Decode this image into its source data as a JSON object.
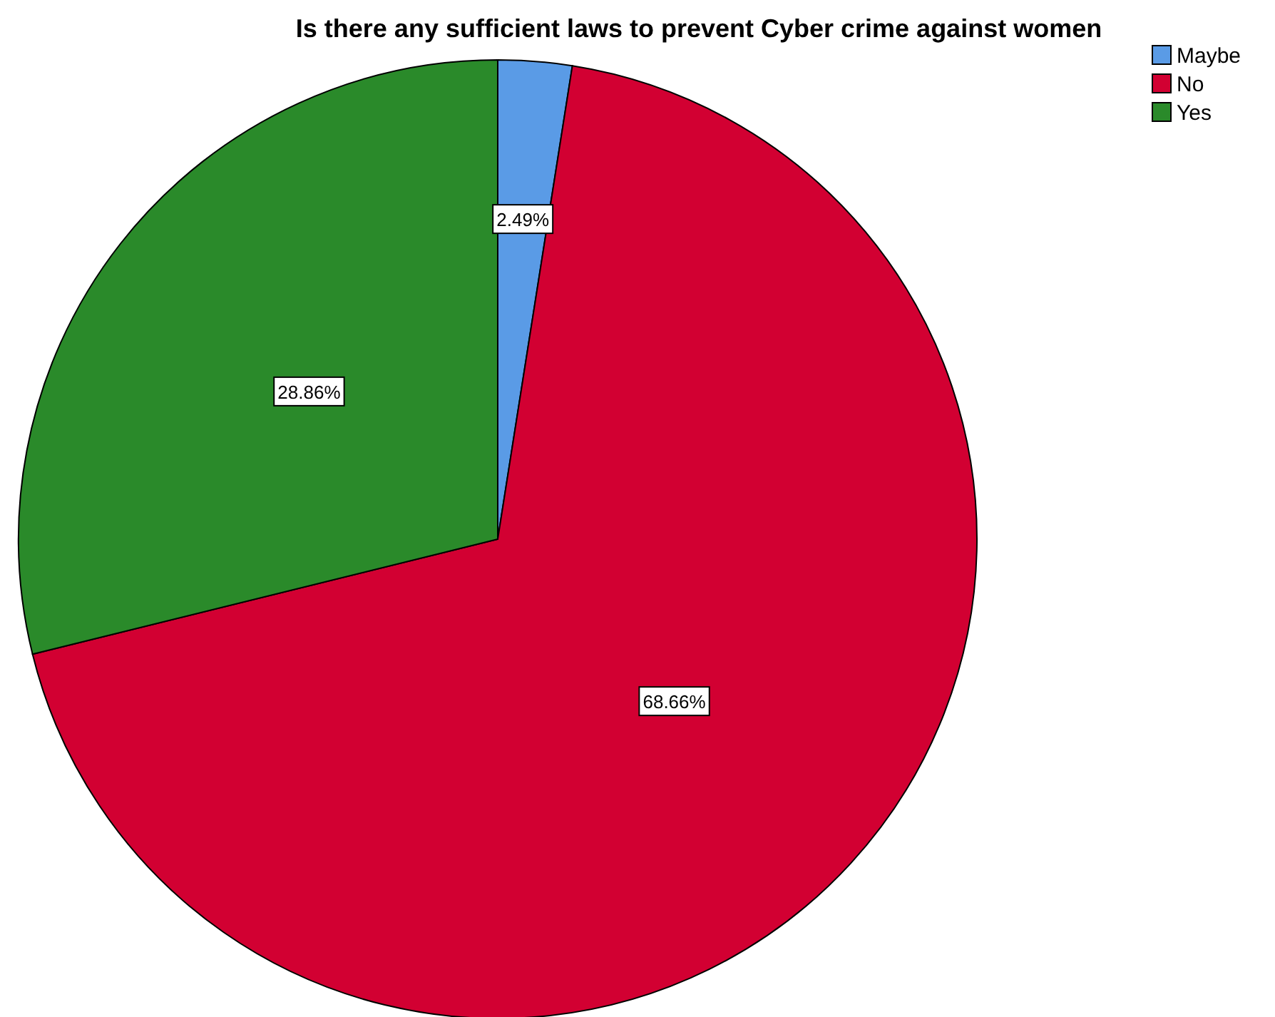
{
  "chart_data": {
    "type": "pie",
    "title": "Is there any sufficient laws to prevent Cyber crime against women",
    "categories": [
      "Maybe",
      "No",
      "Yes"
    ],
    "values": [
      2.49,
      68.66,
      28.86
    ],
    "colors": [
      "#5a9be6",
      "#d20032",
      "#2a8a2a"
    ],
    "value_labels": [
      "2.49%",
      "68.66%",
      "28.86%"
    ],
    "legend": "top right"
  }
}
